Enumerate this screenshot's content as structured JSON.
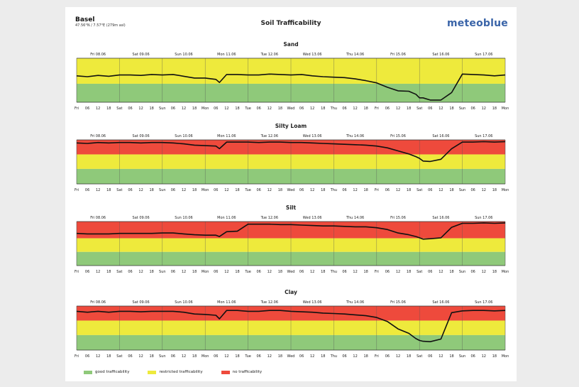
{
  "header": {
    "location": "Basel",
    "coordinates": "47.56°N / 7.57°E (279m asl)",
    "title": "Soil Trafficability",
    "logo": "meteoblue"
  },
  "colors": {
    "good": "#8fc97a",
    "restricted": "#eeea3c",
    "none": "#ee4a3c",
    "line": "#111111",
    "grid": "#555555"
  },
  "legend": [
    {
      "label": "good trafficability",
      "color": "#8fc97a"
    },
    {
      "label": "restricted trafficability",
      "color": "#eeea3c"
    },
    {
      "label": "no trafficability",
      "color": "#ee4a3c"
    }
  ],
  "chart_data": [
    {
      "type": "line",
      "title": "Sand",
      "days": [
        "Fri 08.06",
        "Sat 09.06",
        "Sun 10.06",
        "Mon 11.06",
        "Tue 12.06",
        "Wed 13.06",
        "Thu 14.06",
        "Fri 15.06",
        "Sat 16.06",
        "Sun 17.06"
      ],
      "x_ticks": [
        "Fri",
        "06",
        "12",
        "18",
        "Sat",
        "06",
        "12",
        "18",
        "Sun",
        "06",
        "12",
        "18",
        "Mon",
        "06",
        "12",
        "18",
        "Tue",
        "06",
        "12",
        "18",
        "Wed",
        "06",
        "12",
        "18",
        "Thu",
        "06",
        "12",
        "18",
        "Fri",
        "06",
        "12",
        "18",
        "Sat",
        "06",
        "12",
        "18",
        "Sun",
        "06",
        "12",
        "18",
        "Mon"
      ],
      "bands": [
        "restricted",
        "good"
      ],
      "band_fractions": [
        0.58,
        0.42
      ],
      "x_hours": [
        0,
        6,
        12,
        18,
        24,
        30,
        36,
        42,
        48,
        54,
        60,
        66,
        72,
        78,
        80,
        84,
        90,
        96,
        102,
        108,
        114,
        120,
        126,
        132,
        138,
        144,
        150,
        156,
        162,
        168,
        174,
        180,
        186,
        190,
        192,
        194,
        198,
        204,
        210,
        216,
        222,
        228,
        234,
        240
      ],
      "values": [
        0.6,
        0.58,
        0.61,
        0.59,
        0.62,
        0.62,
        0.61,
        0.63,
        0.62,
        0.63,
        0.59,
        0.55,
        0.55,
        0.52,
        0.45,
        0.63,
        0.63,
        0.62,
        0.62,
        0.64,
        0.63,
        0.62,
        0.63,
        0.6,
        0.58,
        0.57,
        0.56,
        0.53,
        0.49,
        0.44,
        0.34,
        0.26,
        0.25,
        0.18,
        0.1,
        0.1,
        0.05,
        0.05,
        0.22,
        0.64,
        0.63,
        0.62,
        0.6,
        0.62
      ]
    },
    {
      "type": "line",
      "title": "Silty Loam",
      "days": [
        "Fri 08.06",
        "Sat 09.06",
        "Sun 10.06",
        "Mon 11.06",
        "Tue 12.06",
        "Wed 13.06",
        "Thu 14.06",
        "Fri 15.06",
        "Sat 16.06",
        "Sun 17.06"
      ],
      "x_ticks": [
        "Fri",
        "06",
        "12",
        "18",
        "Sat",
        "06",
        "12",
        "18",
        "Sun",
        "06",
        "12",
        "18",
        "Mon",
        "06",
        "12",
        "18",
        "Tue",
        "06",
        "12",
        "18",
        "Wed",
        "06",
        "12",
        "18",
        "Thu",
        "06",
        "12",
        "18",
        "Fri",
        "06",
        "12",
        "18",
        "Sat",
        "06",
        "12",
        "18",
        "Sun",
        "06",
        "12",
        "18",
        "Mon"
      ],
      "bands": [
        "none",
        "restricted",
        "good"
      ],
      "band_fractions": [
        0.33,
        0.33,
        0.34
      ],
      "x_hours": [
        0,
        6,
        12,
        18,
        24,
        30,
        36,
        42,
        48,
        54,
        60,
        66,
        72,
        78,
        80,
        84,
        90,
        96,
        102,
        108,
        114,
        120,
        126,
        132,
        138,
        144,
        150,
        156,
        162,
        168,
        174,
        180,
        186,
        190,
        192,
        194,
        198,
        204,
        210,
        216,
        222,
        228,
        234,
        240
      ],
      "values": [
        0.93,
        0.92,
        0.94,
        0.93,
        0.94,
        0.94,
        0.93,
        0.94,
        0.94,
        0.93,
        0.91,
        0.88,
        0.87,
        0.86,
        0.8,
        0.95,
        0.95,
        0.95,
        0.94,
        0.95,
        0.95,
        0.94,
        0.94,
        0.93,
        0.92,
        0.91,
        0.9,
        0.89,
        0.88,
        0.86,
        0.82,
        0.75,
        0.68,
        0.62,
        0.58,
        0.52,
        0.51,
        0.56,
        0.8,
        0.95,
        0.95,
        0.96,
        0.95,
        0.96
      ]
    },
    {
      "type": "line",
      "title": "Silt",
      "days": [
        "Fri 08.06",
        "Sat 09.06",
        "Sun 10.06",
        "Mon 11.06",
        "Tue 12.06",
        "Wed 13.06",
        "Thu 14.06",
        "Fri 15.06",
        "Sat 16.06",
        "Sun 17.06"
      ],
      "x_ticks": [
        "Fri",
        "06",
        "12",
        "18",
        "Sat",
        "06",
        "12",
        "18",
        "Sun",
        "06",
        "12",
        "18",
        "Mon",
        "06",
        "12",
        "18",
        "Tue",
        "06",
        "12",
        "18",
        "Wed",
        "06",
        "12",
        "18",
        "Thu",
        "06",
        "12",
        "18",
        "Fri",
        "06",
        "12",
        "18",
        "Sat",
        "06",
        "12",
        "18",
        "Sun",
        "06",
        "12",
        "18",
        "Mon"
      ],
      "bands": [
        "none",
        "restricted",
        "good"
      ],
      "band_fractions": [
        0.38,
        0.31,
        0.31
      ],
      "x_hours": [
        0,
        6,
        12,
        18,
        24,
        30,
        36,
        42,
        48,
        54,
        60,
        66,
        72,
        78,
        80,
        84,
        90,
        96,
        102,
        108,
        114,
        120,
        126,
        132,
        138,
        144,
        150,
        156,
        162,
        168,
        174,
        180,
        186,
        190,
        192,
        194,
        198,
        204,
        210,
        216,
        222,
        228,
        234,
        240
      ],
      "values": [
        0.73,
        0.72,
        0.72,
        0.72,
        0.73,
        0.73,
        0.73,
        0.73,
        0.74,
        0.74,
        0.72,
        0.7,
        0.69,
        0.69,
        0.66,
        0.77,
        0.78,
        0.94,
        0.94,
        0.94,
        0.93,
        0.93,
        0.92,
        0.91,
        0.9,
        0.9,
        0.89,
        0.88,
        0.88,
        0.86,
        0.82,
        0.74,
        0.7,
        0.66,
        0.63,
        0.6,
        0.61,
        0.63,
        0.87,
        0.96,
        0.96,
        0.97,
        0.96,
        0.97
      ]
    },
    {
      "type": "line",
      "title": "Clay",
      "days": [
        "Fri 08.06",
        "Sat 09.06",
        "Sun 10.06",
        "Mon 11.06",
        "Tue 12.06",
        "Wed 13.06",
        "Thu 14.06",
        "Fri 15.06",
        "Sat 16.06",
        "Sun 17.06"
      ],
      "x_ticks": [
        "Fri",
        "06",
        "12",
        "18",
        "Sat",
        "06",
        "12",
        "18",
        "Sun",
        "06",
        "12",
        "18",
        "Mon",
        "06",
        "12",
        "18",
        "Tue",
        "06",
        "12",
        "18",
        "Wed",
        "06",
        "12",
        "18",
        "Thu",
        "06",
        "12",
        "18",
        "Fri",
        "06",
        "12",
        "18",
        "Sat",
        "06",
        "12",
        "18",
        "Sun",
        "06",
        "12",
        "18",
        "Mon"
      ],
      "bands": [
        "none",
        "restricted",
        "good"
      ],
      "band_fractions": [
        0.33,
        0.33,
        0.34
      ],
      "x_hours": [
        0,
        6,
        12,
        18,
        24,
        30,
        36,
        42,
        48,
        54,
        60,
        66,
        72,
        78,
        80,
        84,
        90,
        96,
        102,
        108,
        114,
        120,
        126,
        132,
        138,
        144,
        150,
        156,
        162,
        168,
        174,
        180,
        186,
        190,
        192,
        194,
        198,
        204,
        210,
        216,
        222,
        228,
        234,
        240
      ],
      "values": [
        0.88,
        0.86,
        0.88,
        0.86,
        0.88,
        0.88,
        0.87,
        0.88,
        0.88,
        0.88,
        0.86,
        0.82,
        0.81,
        0.79,
        0.71,
        0.9,
        0.9,
        0.88,
        0.88,
        0.9,
        0.9,
        0.88,
        0.87,
        0.86,
        0.84,
        0.83,
        0.82,
        0.8,
        0.78,
        0.74,
        0.65,
        0.48,
        0.38,
        0.26,
        0.22,
        0.2,
        0.19,
        0.25,
        0.85,
        0.89,
        0.9,
        0.9,
        0.89,
        0.9
      ]
    }
  ]
}
